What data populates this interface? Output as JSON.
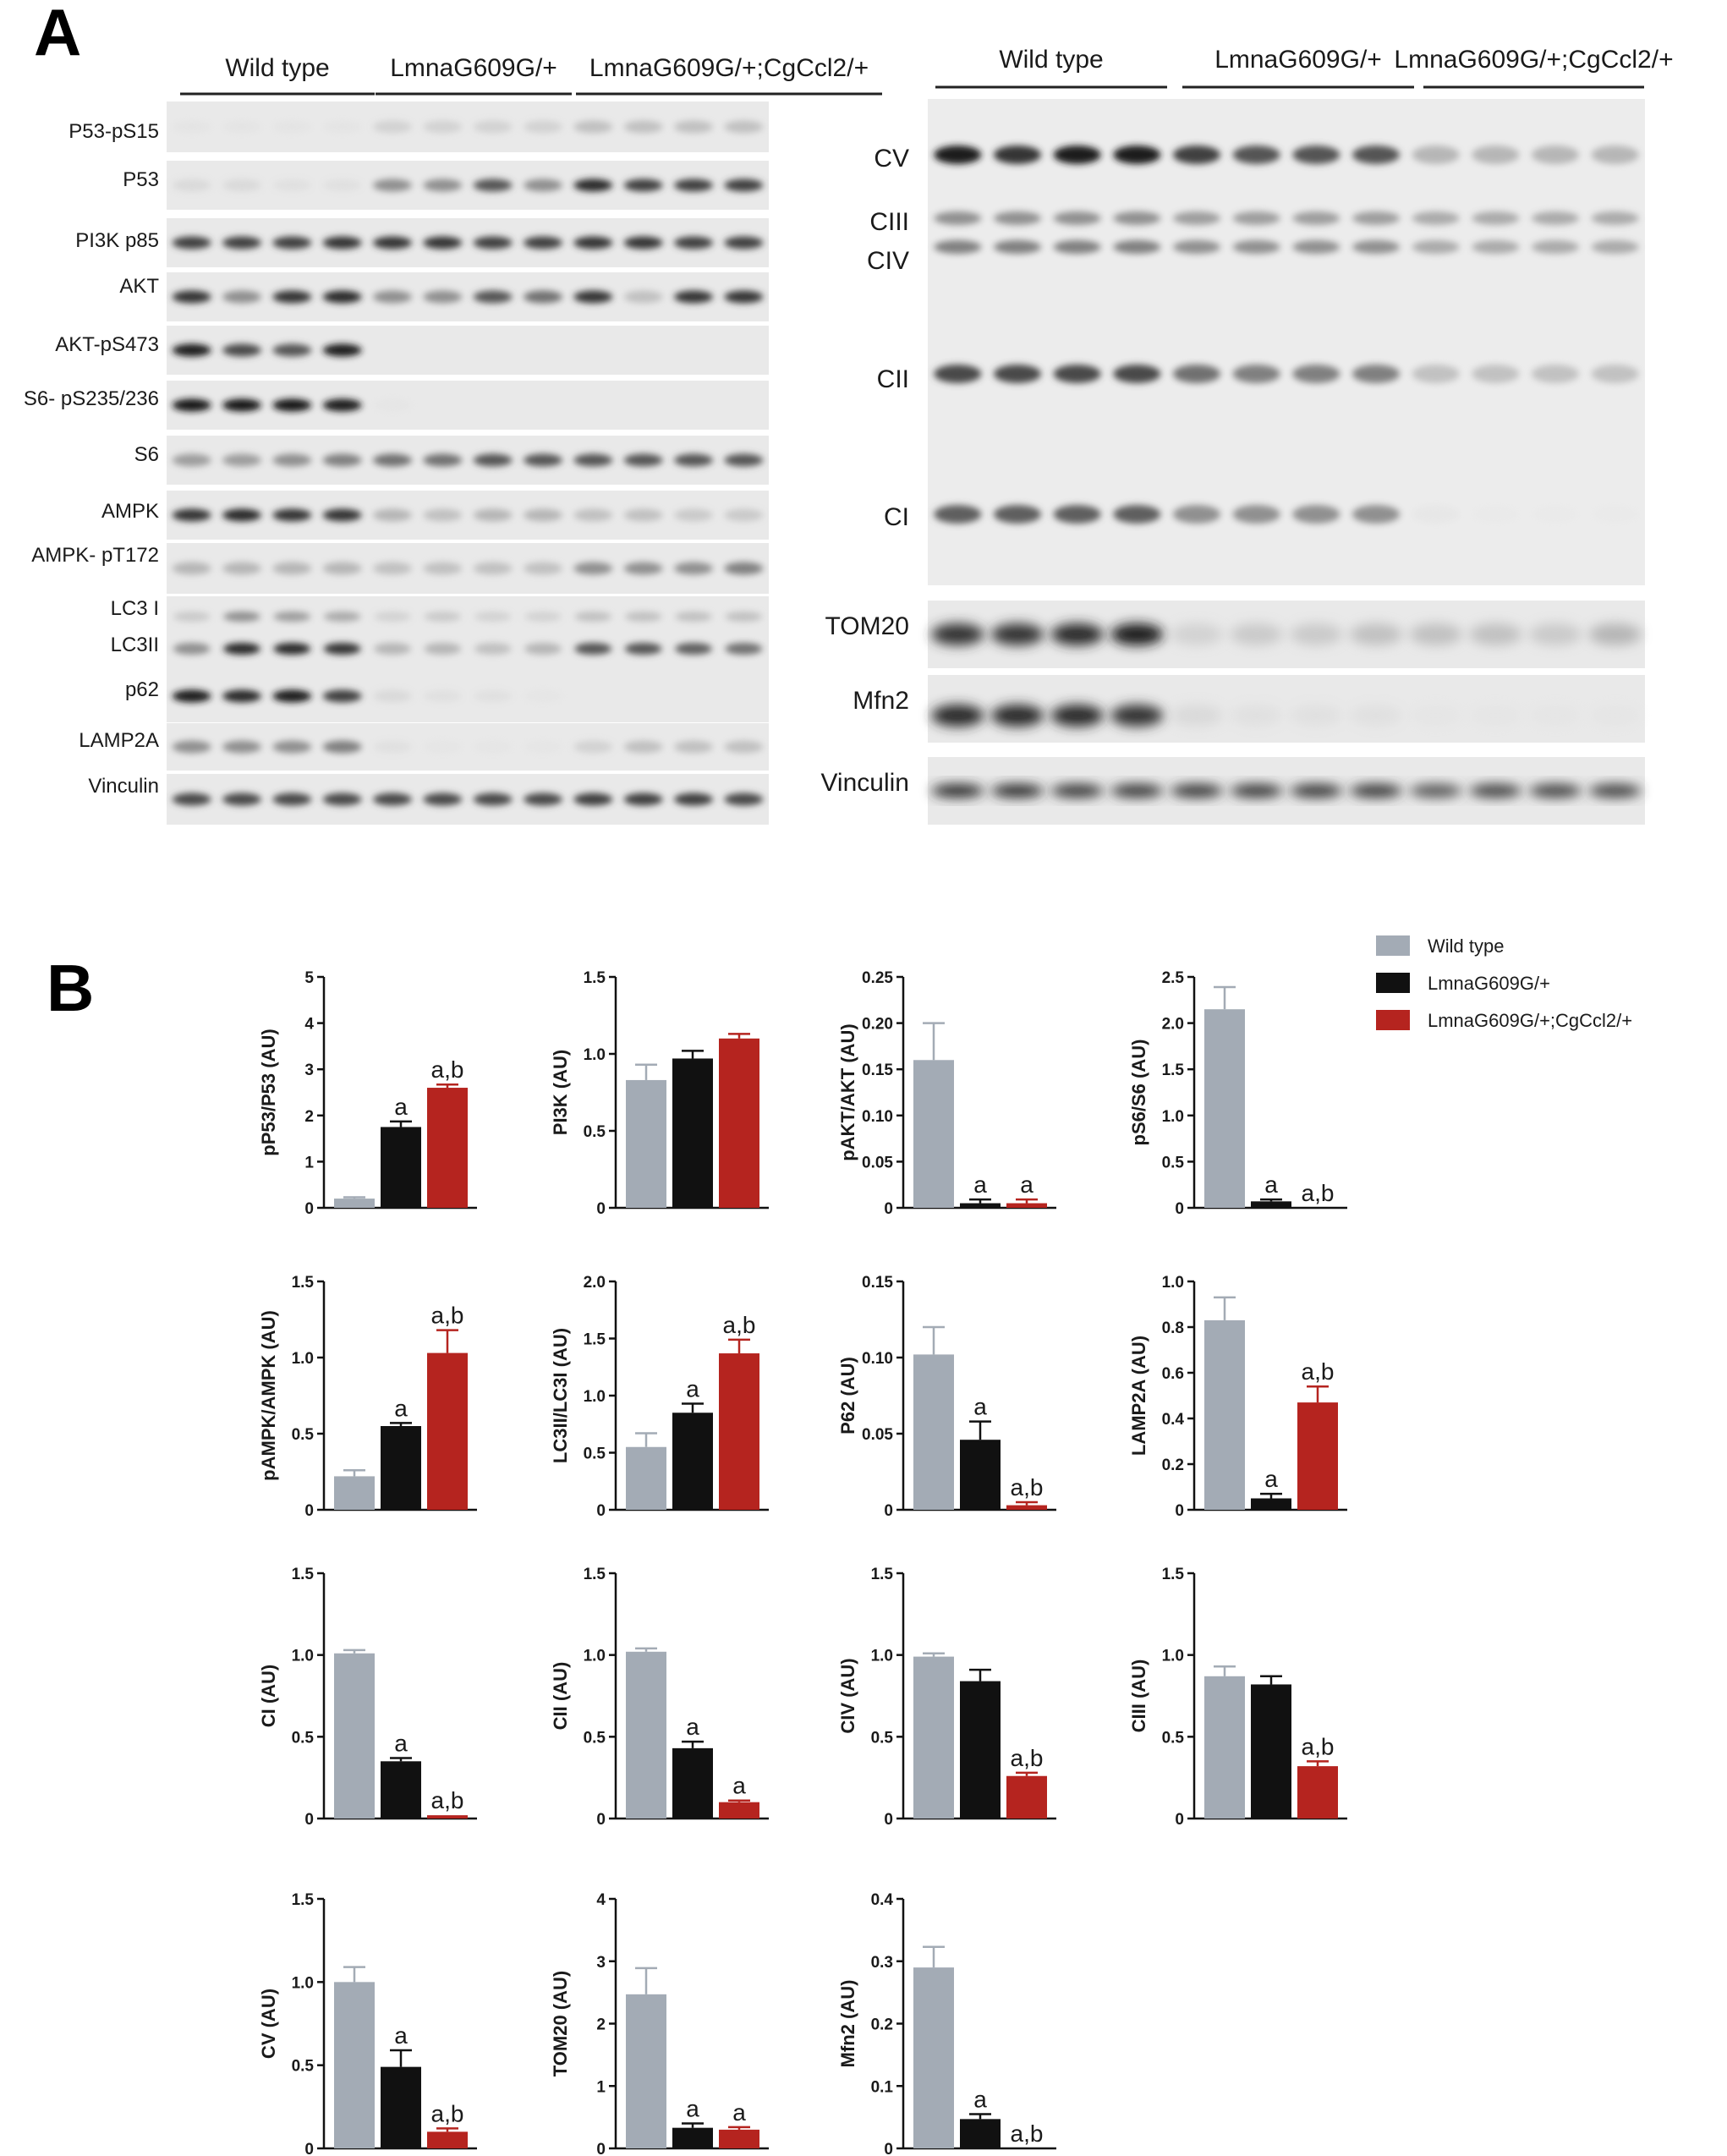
{
  "panel_labels": [
    "A",
    "B"
  ],
  "blots_left": {
    "groups": [
      "Wild type",
      "LmnaG609G/+",
      "LmnaG609G/+;CgCcl2/+"
    ],
    "rows": [
      {
        "label": "P53-pS15",
        "pattern": [
          0.06,
          0.06,
          0.06,
          0.06,
          0.2,
          0.2,
          0.2,
          0.2,
          0.3,
          0.3,
          0.3,
          0.3
        ]
      },
      {
        "label": "P53",
        "pattern": [
          0.15,
          0.15,
          0.1,
          0.1,
          0.5,
          0.5,
          0.7,
          0.5,
          0.9,
          0.8,
          0.8,
          0.8
        ]
      },
      {
        "label": "PI3K p85",
        "pattern": [
          0.8,
          0.8,
          0.8,
          0.85,
          0.85,
          0.85,
          0.8,
          0.8,
          0.85,
          0.85,
          0.8,
          0.8
        ]
      },
      {
        "label": "AKT",
        "pattern": [
          0.85,
          0.5,
          0.85,
          0.9,
          0.5,
          0.5,
          0.7,
          0.6,
          0.85,
          0.3,
          0.85,
          0.85
        ]
      },
      {
        "label": "AKT-pS473",
        "pattern": [
          0.95,
          0.75,
          0.7,
          0.95,
          0,
          0,
          0,
          0,
          0,
          0,
          0,
          0
        ]
      },
      {
        "label": "S6- pS235/236",
        "pattern": [
          1,
          1,
          1,
          0.95,
          0.05,
          0,
          0,
          0,
          0,
          0,
          0,
          0
        ]
      },
      {
        "label": "S6",
        "pattern": [
          0.45,
          0.45,
          0.5,
          0.55,
          0.6,
          0.6,
          0.7,
          0.7,
          0.7,
          0.7,
          0.7,
          0.7
        ]
      },
      {
        "label": "AMPK",
        "pattern": [
          0.85,
          0.9,
          0.85,
          0.85,
          0.35,
          0.3,
          0.35,
          0.35,
          0.3,
          0.3,
          0.25,
          0.25
        ]
      },
      {
        "label": "AMPK- pT172",
        "pattern": [
          0.35,
          0.35,
          0.35,
          0.35,
          0.3,
          0.3,
          0.3,
          0.3,
          0.5,
          0.5,
          0.5,
          0.55
        ]
      },
      {
        "label": "LC3 I",
        "pattern": [
          0.25,
          0.5,
          0.45,
          0.4,
          0.2,
          0.25,
          0.2,
          0.2,
          0.3,
          0.3,
          0.3,
          0.3
        ]
      },
      {
        "label": "LC3II",
        "pattern": [
          0.5,
          0.9,
          0.9,
          0.85,
          0.35,
          0.35,
          0.3,
          0.35,
          0.7,
          0.7,
          0.65,
          0.6
        ]
      },
      {
        "label": "p62",
        "pattern": [
          0.95,
          0.9,
          0.95,
          0.8,
          0.15,
          0.1,
          0.1,
          0.05,
          0,
          0,
          0,
          0
        ]
      },
      {
        "label": "LAMP2A",
        "pattern": [
          0.5,
          0.5,
          0.5,
          0.55,
          0.1,
          0.05,
          0.05,
          0.05,
          0.2,
          0.3,
          0.3,
          0.3
        ]
      },
      {
        "label": "Vinculin",
        "pattern": [
          0.75,
          0.75,
          0.75,
          0.75,
          0.75,
          0.75,
          0.75,
          0.75,
          0.8,
          0.8,
          0.8,
          0.75
        ]
      }
    ]
  },
  "blots_right": {
    "groups": [
      "Wild type",
      "LmnaG609G/+",
      "LmnaG609G/+;CgCcl2/+"
    ],
    "complex_labels": [
      "CV",
      "CIII",
      "CIV",
      "CII",
      "CI"
    ],
    "complex_patterns": [
      [
        0.95,
        0.85,
        0.95,
        0.95,
        0.8,
        0.7,
        0.7,
        0.7,
        0.35,
        0.35,
        0.35,
        0.35
      ],
      [
        0.5,
        0.5,
        0.5,
        0.5,
        0.45,
        0.45,
        0.45,
        0.45,
        0.4,
        0.4,
        0.4,
        0.4
      ],
      [
        0.55,
        0.55,
        0.55,
        0.55,
        0.5,
        0.5,
        0.5,
        0.5,
        0.4,
        0.4,
        0.4,
        0.4
      ],
      [
        0.75,
        0.75,
        0.75,
        0.75,
        0.6,
        0.55,
        0.55,
        0.55,
        0.3,
        0.3,
        0.3,
        0.3
      ],
      [
        0.65,
        0.65,
        0.65,
        0.65,
        0.5,
        0.5,
        0.5,
        0.5,
        0.05,
        0.02,
        0.02,
        0.02
      ]
    ],
    "rows": [
      {
        "label": "TOM20",
        "pattern": [
          0.85,
          0.85,
          0.9,
          0.95,
          0.2,
          0.25,
          0.25,
          0.3,
          0.3,
          0.3,
          0.25,
          0.35
        ]
      },
      {
        "label": "Mfn2",
        "pattern": [
          0.9,
          0.9,
          0.9,
          0.85,
          0.15,
          0.1,
          0.1,
          0.1,
          0.05,
          0.05,
          0.05,
          0.05
        ]
      },
      {
        "label": "Vinculin",
        "pattern": [
          0.9,
          0.9,
          0.85,
          0.85,
          0.85,
          0.85,
          0.85,
          0.85,
          0.7,
          0.8,
          0.8,
          0.8
        ]
      }
    ]
  },
  "legend": [
    {
      "name": "Wild type",
      "color": "#a3abb5"
    },
    {
      "name": "LmnaG609G/+",
      "color": "#111111"
    },
    {
      "name": "LmnaG609G/+;CgCcl2/+",
      "color": "#b5241f"
    }
  ],
  "chart_data": [
    {
      "type": "bar",
      "ylabel": "pP53/P53 (AU)",
      "ylim": [
        0,
        5
      ],
      "yticks": [
        "0",
        "1",
        "2",
        "3",
        "4",
        "5"
      ],
      "values": [
        0.2,
        1.75,
        2.6
      ],
      "errors": [
        0.03,
        0.12,
        0.07
      ],
      "annotations": [
        "",
        "a",
        "a,b"
      ]
    },
    {
      "type": "bar",
      "ylabel": "PI3K (AU)",
      "ylim": [
        0,
        1.5
      ],
      "yticks": [
        "0",
        "0.5",
        "1.0",
        "1.5"
      ],
      "values": [
        0.83,
        0.97,
        1.1
      ],
      "errors": [
        0.1,
        0.05,
        0.03
      ],
      "annotations": [
        "",
        "",
        ""
      ]
    },
    {
      "type": "bar",
      "ylabel": "pAKT/AKT (AU)",
      "ylim": [
        0,
        0.25
      ],
      "yticks": [
        "0",
        "0.05",
        "0.10",
        "0.15",
        "0.20",
        "0.25"
      ],
      "values": [
        0.16,
        0.005,
        0.005
      ],
      "errors": [
        0.04,
        0.004,
        0.004
      ],
      "annotations": [
        "",
        "a",
        "a"
      ]
    },
    {
      "type": "bar",
      "ylabel": "pS6/S6 (AU)",
      "ylim": [
        0,
        2.5
      ],
      "yticks": [
        "0",
        "0.5",
        "1.0",
        "1.5",
        "2.0",
        "2.5"
      ],
      "values": [
        2.15,
        0.07,
        0.0
      ],
      "errors": [
        0.24,
        0.02,
        0.0
      ],
      "annotations": [
        "",
        "a",
        "a,b"
      ]
    },
    {
      "type": "bar",
      "ylabel": "pAMPK/AMPK (AU)",
      "ylim": [
        0,
        1.5
      ],
      "yticks": [
        "0",
        "0.5",
        "1.0",
        "1.5"
      ],
      "values": [
        0.22,
        0.55,
        1.03
      ],
      "errors": [
        0.04,
        0.02,
        0.15
      ],
      "annotations": [
        "",
        "a",
        "a,b"
      ]
    },
    {
      "type": "bar",
      "ylabel": "LC3II/LC3I (AU)",
      "ylim": [
        0,
        2.0
      ],
      "yticks": [
        "0",
        "0.5",
        "1.0",
        "1.5",
        "2.0"
      ],
      "values": [
        0.55,
        0.85,
        1.37
      ],
      "errors": [
        0.12,
        0.08,
        0.12
      ],
      "annotations": [
        "",
        "a",
        "a,b"
      ]
    },
    {
      "type": "bar",
      "ylabel": "P62 (AU)",
      "ylim": [
        0,
        0.15
      ],
      "yticks": [
        "0",
        "0.05",
        "0.10",
        "0.15"
      ],
      "values": [
        0.102,
        0.046,
        0.003
      ],
      "errors": [
        0.018,
        0.012,
        0.002
      ],
      "annotations": [
        "",
        "a",
        "a,b"
      ]
    },
    {
      "type": "bar",
      "ylabel": "LAMP2A (AU)",
      "ylim": [
        0,
        1.0
      ],
      "yticks": [
        "0",
        "0.2",
        "0.4",
        "0.6",
        "0.8",
        "1.0"
      ],
      "values": [
        0.83,
        0.05,
        0.47
      ],
      "errors": [
        0.1,
        0.02,
        0.07
      ],
      "annotations": [
        "",
        "a",
        "a,b"
      ]
    },
    {
      "type": "bar",
      "ylabel": "CI (AU)",
      "ylim": [
        0,
        1.5
      ],
      "yticks": [
        "0",
        "0.5",
        "1.0",
        "1.5"
      ],
      "values": [
        1.01,
        0.35,
        0.02
      ],
      "errors": [
        0.02,
        0.02,
        0.0
      ],
      "annotations": [
        "",
        "a",
        "a,b"
      ]
    },
    {
      "type": "bar",
      "ylabel": "CII (AU)",
      "ylim": [
        0,
        1.5
      ],
      "yticks": [
        "0",
        "0.5",
        "1.0",
        "1.5"
      ],
      "values": [
        1.02,
        0.43,
        0.1
      ],
      "errors": [
        0.02,
        0.04,
        0.01
      ],
      "annotations": [
        "",
        "a",
        "a"
      ]
    },
    {
      "type": "bar",
      "ylabel": "CIV (AU)",
      "ylim": [
        0,
        1.5
      ],
      "yticks": [
        "0",
        "0.5",
        "1.0",
        "1.5"
      ],
      "values": [
        0.99,
        0.84,
        0.26
      ],
      "errors": [
        0.02,
        0.07,
        0.02
      ],
      "annotations": [
        "",
        "",
        "a,b"
      ]
    },
    {
      "type": "bar",
      "ylabel": "CIII (AU)",
      "ylim": [
        0,
        1.5
      ],
      "yticks": [
        "0",
        "0.5",
        "1.0",
        "1.5"
      ],
      "values": [
        0.87,
        0.82,
        0.32
      ],
      "errors": [
        0.06,
        0.05,
        0.03
      ],
      "annotations": [
        "",
        "",
        "a,b"
      ]
    },
    {
      "type": "bar",
      "ylabel": "CV (AU)",
      "ylim": [
        0,
        1.5
      ],
      "yticks": [
        "0",
        "0.5",
        "1.0",
        "1.5"
      ],
      "values": [
        1.0,
        0.49,
        0.1
      ],
      "errors": [
        0.09,
        0.1,
        0.02
      ],
      "annotations": [
        "",
        "a",
        "a,b"
      ]
    },
    {
      "type": "bar",
      "ylabel": "TOM20 (AU)",
      "ylim": [
        0,
        4
      ],
      "yticks": [
        "0",
        "1",
        "2",
        "3",
        "4"
      ],
      "values": [
        2.47,
        0.33,
        0.3
      ],
      "errors": [
        0.42,
        0.07,
        0.04
      ],
      "annotations": [
        "",
        "a",
        "a"
      ]
    },
    {
      "type": "bar",
      "ylabel": "Mfn2 (AU)",
      "ylim": [
        0,
        0.4
      ],
      "yticks": [
        "0",
        "0.1",
        "0.2",
        "0.3",
        "0.4"
      ],
      "values": [
        0.29,
        0.047,
        0.0
      ],
      "errors": [
        0.033,
        0.008,
        0.0
      ],
      "annotations": [
        "",
        "a",
        "a,b"
      ]
    }
  ]
}
